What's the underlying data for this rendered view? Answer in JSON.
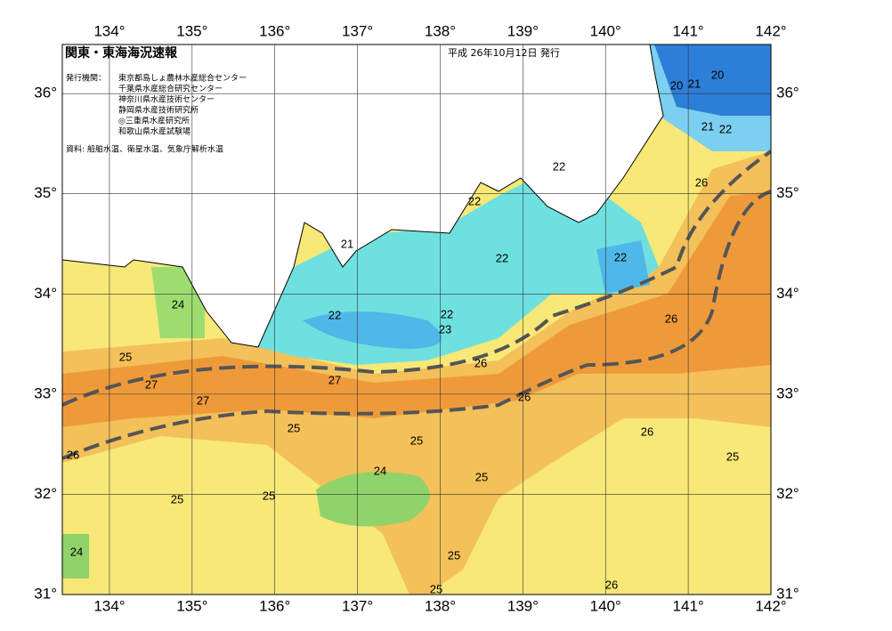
{
  "header": {
    "title": "関東・東海海況速報",
    "date": "平成 26年10月12日 発行"
  },
  "issuers": {
    "label": "発行機関：",
    "items": [
      "東京都島しょ農林水産総合センター",
      "千葉県水産総合研究センター",
      "神奈川県水産技術センター",
      "静岡県水産技術研究所",
      "◎三重県水産研究所",
      "和歌山県水産試験場"
    ]
  },
  "source": "資料: 船舶水温、衛星水温、気象庁解析水温",
  "map": {
    "lon_range": [
      133.43,
      142
    ],
    "lat_range": [
      31,
      36.49
    ],
    "lon_ticks": [
      {
        "value": 134,
        "label": "134°"
      },
      {
        "value": 135,
        "label": "135°"
      },
      {
        "value": 136,
        "label": "136°"
      },
      {
        "value": 137,
        "label": "137°"
      },
      {
        "value": 138,
        "label": "138°"
      },
      {
        "value": 139,
        "label": "139°"
      },
      {
        "value": 140,
        "label": "140°"
      },
      {
        "value": 141,
        "label": "141°"
      },
      {
        "value": 142,
        "label": "142°"
      }
    ],
    "lat_ticks": [
      {
        "value": 31,
        "label": "31°"
      },
      {
        "value": 32,
        "label": "32°"
      },
      {
        "value": 33,
        "label": "33°"
      },
      {
        "value": 34,
        "label": "34°"
      },
      {
        "value": 35,
        "label": "35°"
      },
      {
        "value": 36,
        "label": "36°"
      }
    ],
    "contour_labels": [
      21,
      22,
      22,
      20,
      21,
      20,
      21,
      22,
      26,
      22,
      22,
      24,
      22,
      22,
      23,
      26,
      26,
      25,
      27,
      27,
      27,
      26,
      25,
      25,
      26,
      26,
      25,
      24,
      25,
      25,
      25,
      24,
      25,
      25,
      26
    ]
  }
}
